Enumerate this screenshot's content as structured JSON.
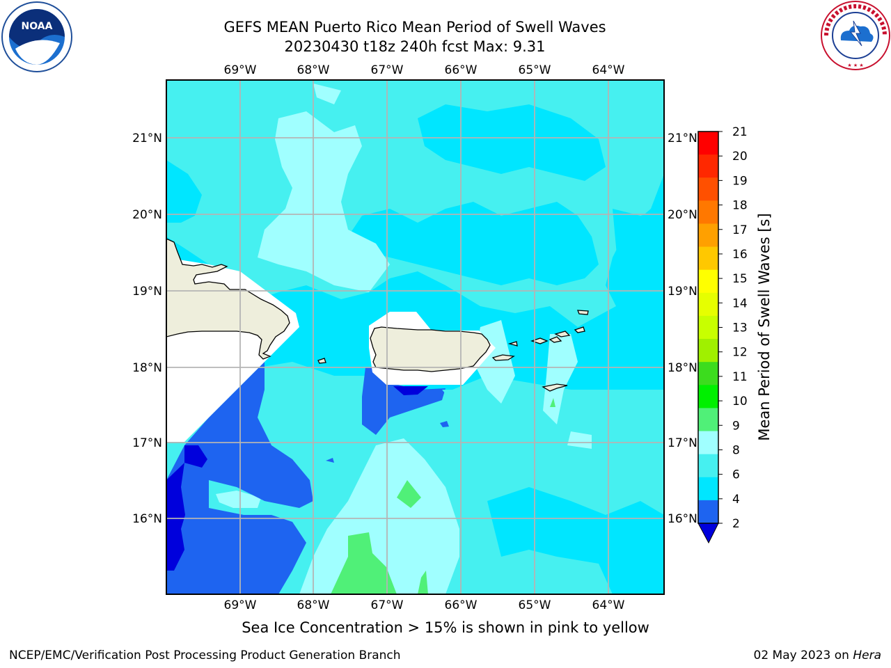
{
  "header": {
    "title_line1": "GEFS MEAN Puerto Rico Mean Period of Swell Waves",
    "title_line2": "20230430 t18z 240h fcst   Max: 9.31"
  },
  "logos": {
    "left": "noaa-logo",
    "left_text": "NOAA",
    "right": "nws-logo",
    "right_text": "NATIONAL WEATHER SERVICE"
  },
  "map": {
    "lon_labels": [
      "69°W",
      "68°W",
      "67°W",
      "66°W",
      "65°W",
      "64°W"
    ],
    "lat_labels": [
      "21°N",
      "20°N",
      "19°N",
      "18°N",
      "17°N",
      "16°N"
    ],
    "ocean_colors": {
      "c2_4": "#1e64f0",
      "c4_6": "#00e6ff",
      "c6_8": "#46f0f0",
      "c8_9": "#a0ffff",
      "c9_10": "#50f078",
      "below_2": "#0000dc",
      "land": "#eeeedc",
      "nodata": "#ffffff",
      "grid": "#b4b4b4"
    }
  },
  "colorbar": {
    "label": "Mean Period of Swell Waves [s]",
    "ticks": [
      "21",
      "20",
      "19",
      "18",
      "17",
      "16",
      "15",
      "14",
      "13",
      "12",
      "11",
      "10",
      "9",
      "8",
      "6",
      "4",
      "2"
    ],
    "colors": [
      "#ff0000",
      "#ff2800",
      "#ff5000",
      "#ff7800",
      "#ffa000",
      "#ffc800",
      "#ffff00",
      "#e6ff00",
      "#c8ff00",
      "#a0f000",
      "#3cdc1e",
      "#00f000",
      "#50f078",
      "#a0ffff",
      "#46f0f0",
      "#00e6ff",
      "#1e64f0"
    ],
    "extend_color": "#0000dc"
  },
  "ice_note": "Sea Ice Concentration > 15% is shown in pink to yellow",
  "footer": {
    "left": "NCEP/EMC/Verification Post Processing Product Generation Branch",
    "date": "02 May 2023 on ",
    "machine": "Hera"
  }
}
